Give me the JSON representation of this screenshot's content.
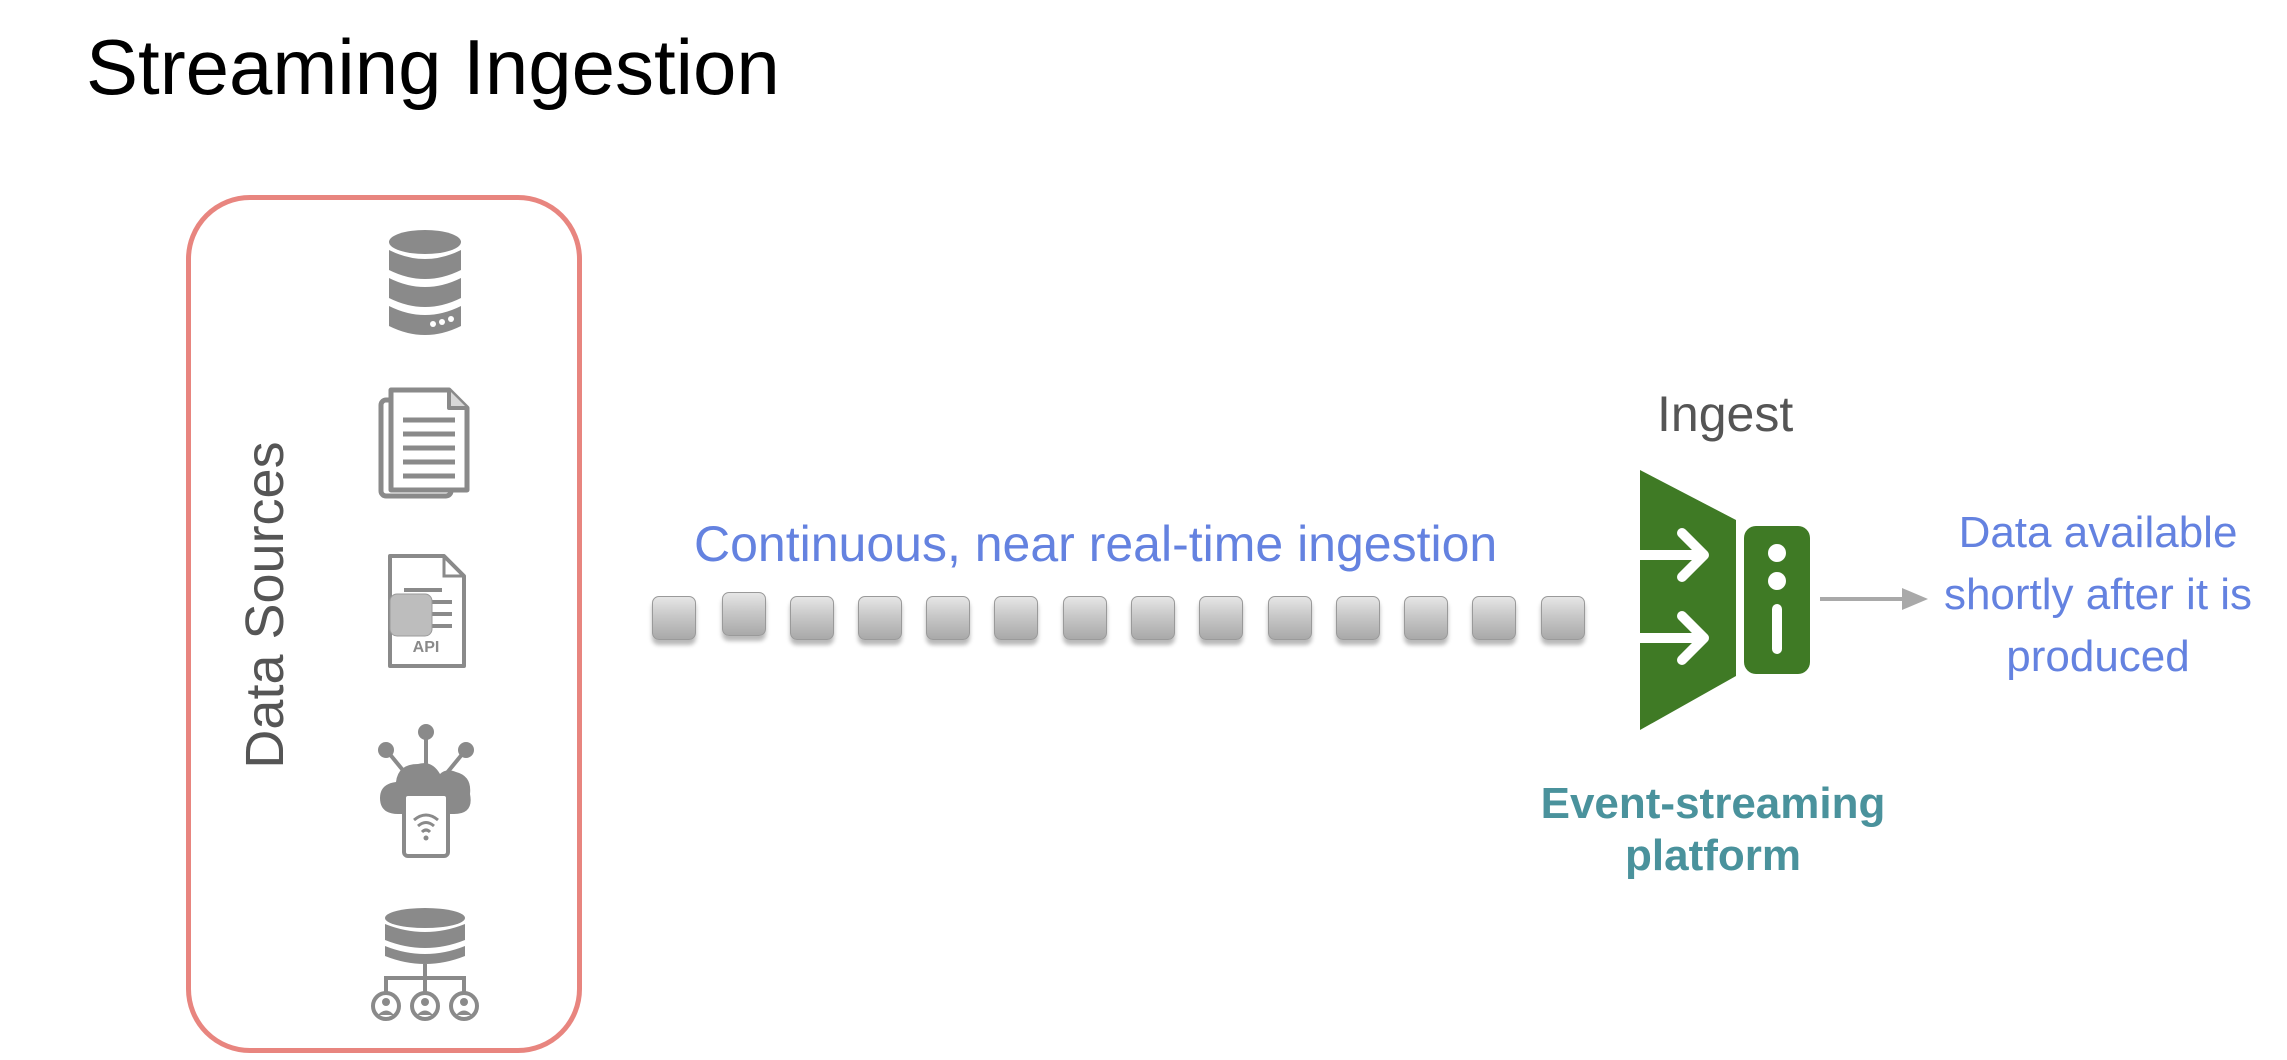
{
  "title": "Streaming Ingestion",
  "sources": {
    "label": "Data Sources",
    "icons": [
      "database-icon",
      "document-icon",
      "api-document-icon",
      "iot-cloud-icon",
      "database-users-icon"
    ],
    "border_color": "#e8857f"
  },
  "stream": {
    "label": "Continuous, near real-time ingestion",
    "event_count": 14
  },
  "ingest": {
    "label": "Ingest",
    "platform_label_lines": [
      "Event-streaming",
      "platform"
    ],
    "platform_icon": "event-streaming-platform-icon",
    "platform_color": "#3f7a25"
  },
  "output": {
    "lines": [
      "Data available",
      "shortly after it is",
      "produced"
    ],
    "arrow_icon": "arrow-right-icon"
  },
  "colors": {
    "accent_blue": "#6482e0",
    "teal": "#4a929c",
    "icon_gray": "#8a8a8a"
  }
}
